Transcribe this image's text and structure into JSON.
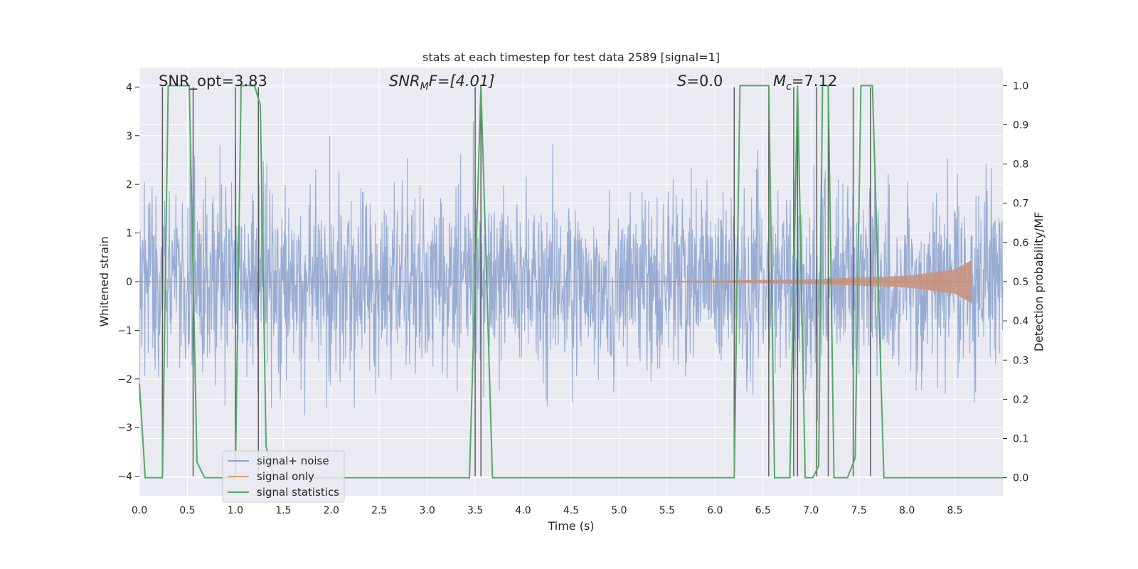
{
  "chart_data": {
    "type": "line",
    "title": "stats at each timestep for test data 2589 [signal=1]",
    "xlabel": "Time (s)",
    "ylabel": "Whitened strain",
    "ylabel_right": "Detection probability/MF",
    "xlim": [
      0.0,
      9.0
    ],
    "ylim": [
      -4.4,
      4.4
    ],
    "ylim_right": [
      -0.046,
      1.046
    ],
    "x_ticks": [
      "0.0",
      "0.5",
      "1.0",
      "1.5",
      "2.0",
      "2.5",
      "3.0",
      "3.5",
      "4.0",
      "4.5",
      "5.0",
      "5.5",
      "6.0",
      "6.5",
      "7.0",
      "7.5",
      "8.0",
      "8.5"
    ],
    "y_ticks_left": [
      "4",
      "3",
      "2",
      "1",
      "0",
      "−1",
      "−2",
      "−3",
      "−4"
    ],
    "y_ticks_right": [
      "1.0",
      "0.9",
      "0.8",
      "0.7",
      "0.6",
      "0.5",
      "0.4",
      "0.3",
      "0.2",
      "0.1",
      "0.0"
    ],
    "grid": true,
    "legend_position": "lower-left",
    "colors": {
      "background": "#eaeaf2",
      "grid": "#ffffff",
      "signal_noise": "#8fa5cf",
      "signal_only": "#dd8452",
      "signal_only_fill": "#c8937f",
      "signal_statistics": "#55a868",
      "marker_lines": "#444444"
    },
    "annotations": {
      "snr_opt": "SNR_opt=3.83",
      "snr_mf_base": "SNR",
      "snr_mf_sub": "M",
      "snr_mf_rest": "F=[4.01]",
      "s_stat_var": "S",
      "s_stat_rest": "=0.0",
      "mc_var": "M",
      "mc_sub": "c",
      "mc_rest": "=7.12"
    },
    "series": [
      {
        "name": "signal+ noise",
        "kind": "noise",
        "amplitude_sigma": 0.95,
        "sample_step": 0.004,
        "t_range": [
          0.0,
          9.0
        ]
      },
      {
        "name": "signal only",
        "kind": "chirp",
        "t_range": [
          0.0,
          8.68
        ],
        "envelope": [
          [
            0.0,
            0.0
          ],
          [
            4.5,
            0.004
          ],
          [
            6.0,
            0.02
          ],
          [
            7.0,
            0.05
          ],
          [
            8.0,
            0.12
          ],
          [
            8.5,
            0.25
          ],
          [
            8.68,
            0.45
          ]
        ]
      },
      {
        "name": "signal statistics",
        "kind": "step",
        "x": [
          0.0,
          0.06,
          0.24,
          0.3,
          0.52,
          0.6,
          0.68,
          0.8,
          0.88,
          1.0,
          1.06,
          1.2,
          1.26,
          1.32,
          1.4,
          3.44,
          3.56,
          3.68,
          6.2,
          6.26,
          6.56,
          6.62,
          6.78,
          6.86,
          6.94,
          7.02,
          7.08,
          7.12,
          7.18,
          7.24,
          7.38,
          7.46,
          7.52,
          7.64,
          7.76,
          9.0
        ],
        "y": [
          0.24,
          0.0,
          0.0,
          1.0,
          1.0,
          0.04,
          0.0,
          0.0,
          0.0,
          0.0,
          1.0,
          1.0,
          0.95,
          0.08,
          0.0,
          0.0,
          1.0,
          0.0,
          0.0,
          1.0,
          1.0,
          0.0,
          0.0,
          1.0,
          0.0,
          0.0,
          0.03,
          1.0,
          1.0,
          0.0,
          0.0,
          0.05,
          1.0,
          1.0,
          0.0,
          0.0
        ]
      }
    ],
    "vertical_markers": [
      0.24,
      0.56,
      1.0,
      1.24,
      3.5,
      3.56,
      6.2,
      6.56,
      6.82,
      6.86,
      7.06,
      7.18,
      7.44,
      7.62
    ]
  }
}
